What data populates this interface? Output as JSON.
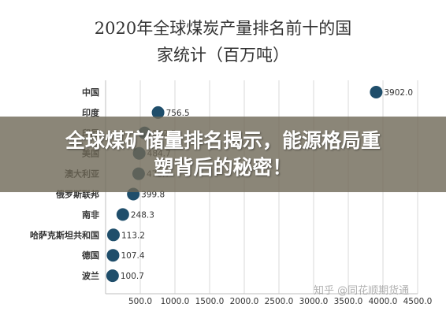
{
  "chart_data": {
    "type": "scatter",
    "title_line1": "2020年全球煤炭产量排名前十的国",
    "title_line2": "家统计（百万吨）",
    "categories": [
      "中国",
      "印度",
      "印尼",
      "美国",
      "澳大利亚",
      "俄罗斯联邦",
      "南非",
      "哈萨克斯坦共和国",
      "德国",
      "波兰"
    ],
    "values": [
      3902.0,
      756.5,
      562.5,
      484.7,
      476.7,
      399.8,
      248.3,
      113.2,
      107.4,
      100.7
    ],
    "value_labels": [
      "3902.0",
      "756.5",
      "562.5",
      "484.7",
      "476.7",
      "399.8",
      "248.3",
      "113.2",
      "107.4",
      "100.7"
    ],
    "x_ticks": [
      "500.0",
      "1000.0",
      "1500.0",
      "2000.0",
      "2500.0",
      "3000.0",
      "3500.0",
      "4000.0",
      "4500.0"
    ],
    "x_tick_values": [
      500,
      1000,
      1500,
      2000,
      2500,
      3000,
      3500,
      4000,
      4500
    ],
    "xlim": [
      0,
      4500
    ],
    "grid": "vertical",
    "marker_color": "#1f4e6b"
  },
  "overlay": {
    "banner_line1": "全球煤矿储量排名揭示，能源格局重",
    "banner_line2": "塑背后的秘密！"
  },
  "watermark": {
    "text": "知乎 @同花顺期货通"
  }
}
